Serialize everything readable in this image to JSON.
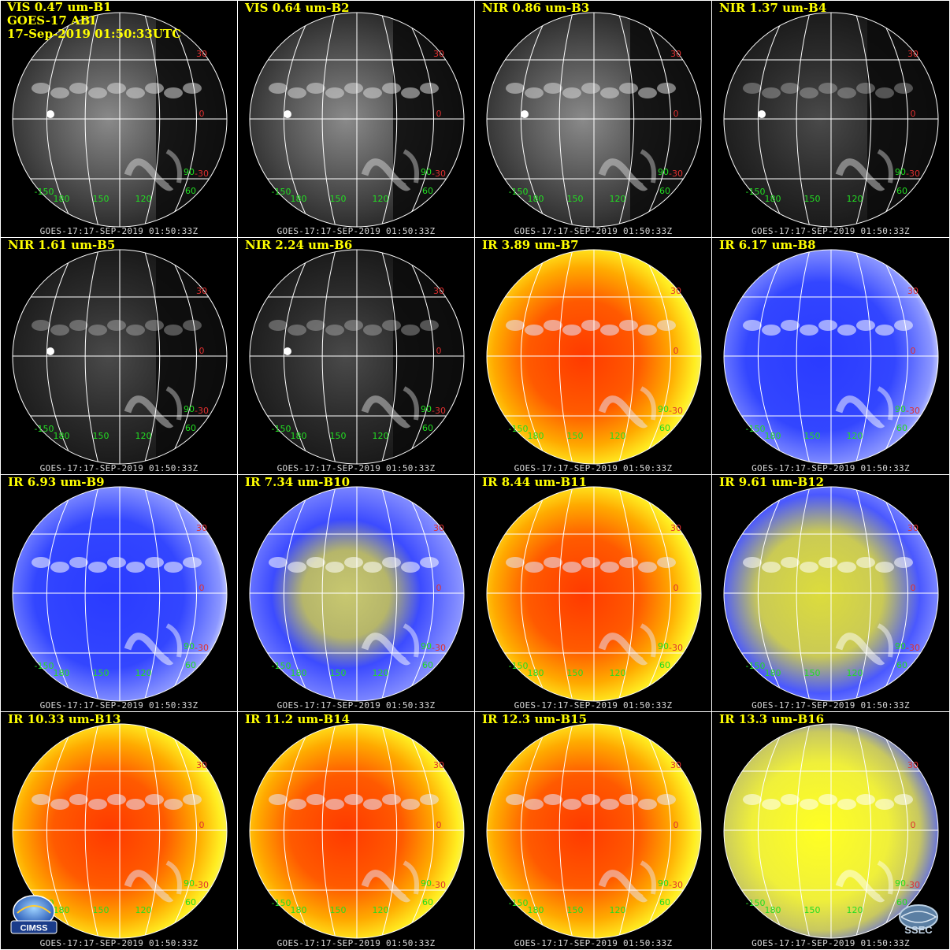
{
  "header": {
    "band": "VIS 0.47 um-B1",
    "satellite": "GOES-17 ABI",
    "datetime": "17-Sep-2019 01:50:33UTC"
  },
  "timestamp": "GOES-17:17-SEP-2019 01:50:33Z",
  "panels": [
    {
      "label": "VIS 0.47 um-B1",
      "style": "vis"
    },
    {
      "label": "VIS 0.64 um-B2",
      "style": "vis"
    },
    {
      "label": "NIR 0.86 um-B3",
      "style": "vis"
    },
    {
      "label": "NIR 1.37 um-B4",
      "style": "dark"
    },
    {
      "label": "NIR 1.61 um-B5",
      "style": "dark"
    },
    {
      "label": "NIR 2.24 um-B6",
      "style": "dark"
    },
    {
      "label": "IR 3.89 um-B7",
      "style": "ir"
    },
    {
      "label": "IR 6.17 um-B8",
      "style": "wv"
    },
    {
      "label": "IR 6.93 um-B9",
      "style": "wv"
    },
    {
      "label": "IR 7.34 um-B10",
      "style": "wv2"
    },
    {
      "label": "IR 8.44 um-B11",
      "style": "ir"
    },
    {
      "label": "IR 9.61 um-B12",
      "style": "oz"
    },
    {
      "label": "IR 10.33 um-B13",
      "style": "ir"
    },
    {
      "label": "IR 11.2 um-B14",
      "style": "ir"
    },
    {
      "label": "IR 12.3 um-B15",
      "style": "ir"
    },
    {
      "label": "IR 13.3 um-B16",
      "style": "co2"
    }
  ],
  "grid_labels": {
    "lat": [
      "30",
      "0",
      "-30"
    ],
    "lon": [
      "-150",
      "180",
      "150",
      "120",
      "90",
      "60"
    ]
  },
  "colors": {
    "background": "#000000",
    "title": "#ffff00",
    "lat_label": "#e03030",
    "lon_label": "#22dd22",
    "graticule": "#ffffff",
    "ir_warm": "#ff3300",
    "ir_mid": "#ffcc00",
    "cold": "#1a2bff"
  },
  "logos": {
    "left": "CIMSS",
    "right": "SSEC"
  }
}
